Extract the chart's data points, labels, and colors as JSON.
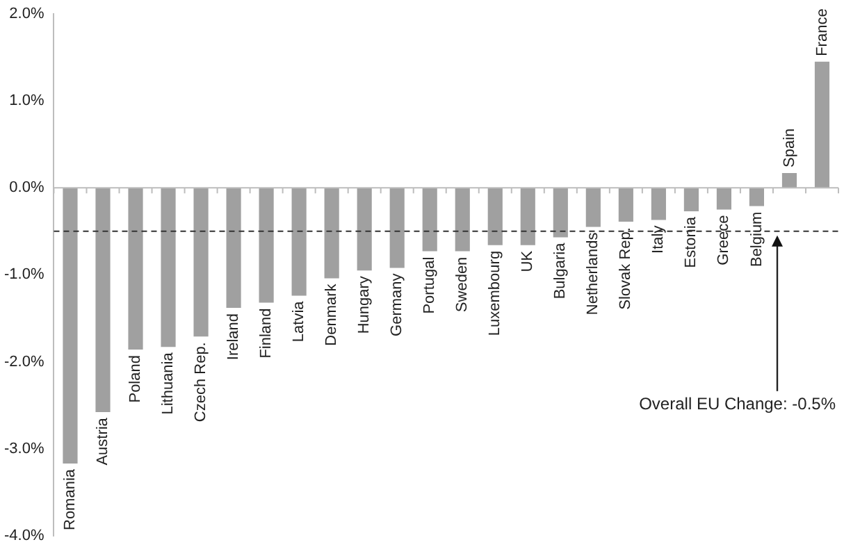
{
  "chart_data": {
    "type": "bar",
    "categories": [
      "Romania",
      "Austria",
      "Poland",
      "Lithuania",
      "Czech Rep.",
      "Ireland",
      "Finland",
      "Latvia",
      "Denmark",
      "Hungary",
      "Germany",
      "Portugal",
      "Sweden",
      "Luxembourg",
      "UK",
      "Bulgaria",
      "Netherlands",
      "Slovak Rep.",
      "Italy",
      "Estonia",
      "Greece",
      "Belgium",
      "Spain",
      "France"
    ],
    "values": [
      -3.17,
      -2.58,
      -1.86,
      -1.83,
      -1.71,
      -1.38,
      -1.32,
      -1.24,
      -1.04,
      -0.95,
      -0.92,
      -0.73,
      -0.73,
      -0.66,
      -0.66,
      -0.57,
      -0.45,
      -0.39,
      -0.37,
      -0.27,
      -0.25,
      -0.21,
      0.17,
      1.45
    ],
    "color": "#a0a0a0",
    "ylim": [
      -4,
      2
    ],
    "yticks": [
      {
        "value": -4,
        "label": "-4.0%"
      },
      {
        "value": -3,
        "label": "-3.0%"
      },
      {
        "value": -2,
        "label": "-2.0%"
      },
      {
        "value": -1,
        "label": "-1.0%"
      },
      {
        "value": 0,
        "label": "0.0%"
      },
      {
        "value": 1,
        "label": "1.0%"
      },
      {
        "value": 2,
        "label": "2.0%"
      }
    ],
    "grid": false,
    "ref_lines": [
      {
        "axis": "y",
        "value": -0.5,
        "label": "Overall EU Change: -0.5%",
        "line_style": "dashed",
        "color": "#333333"
      }
    ]
  }
}
